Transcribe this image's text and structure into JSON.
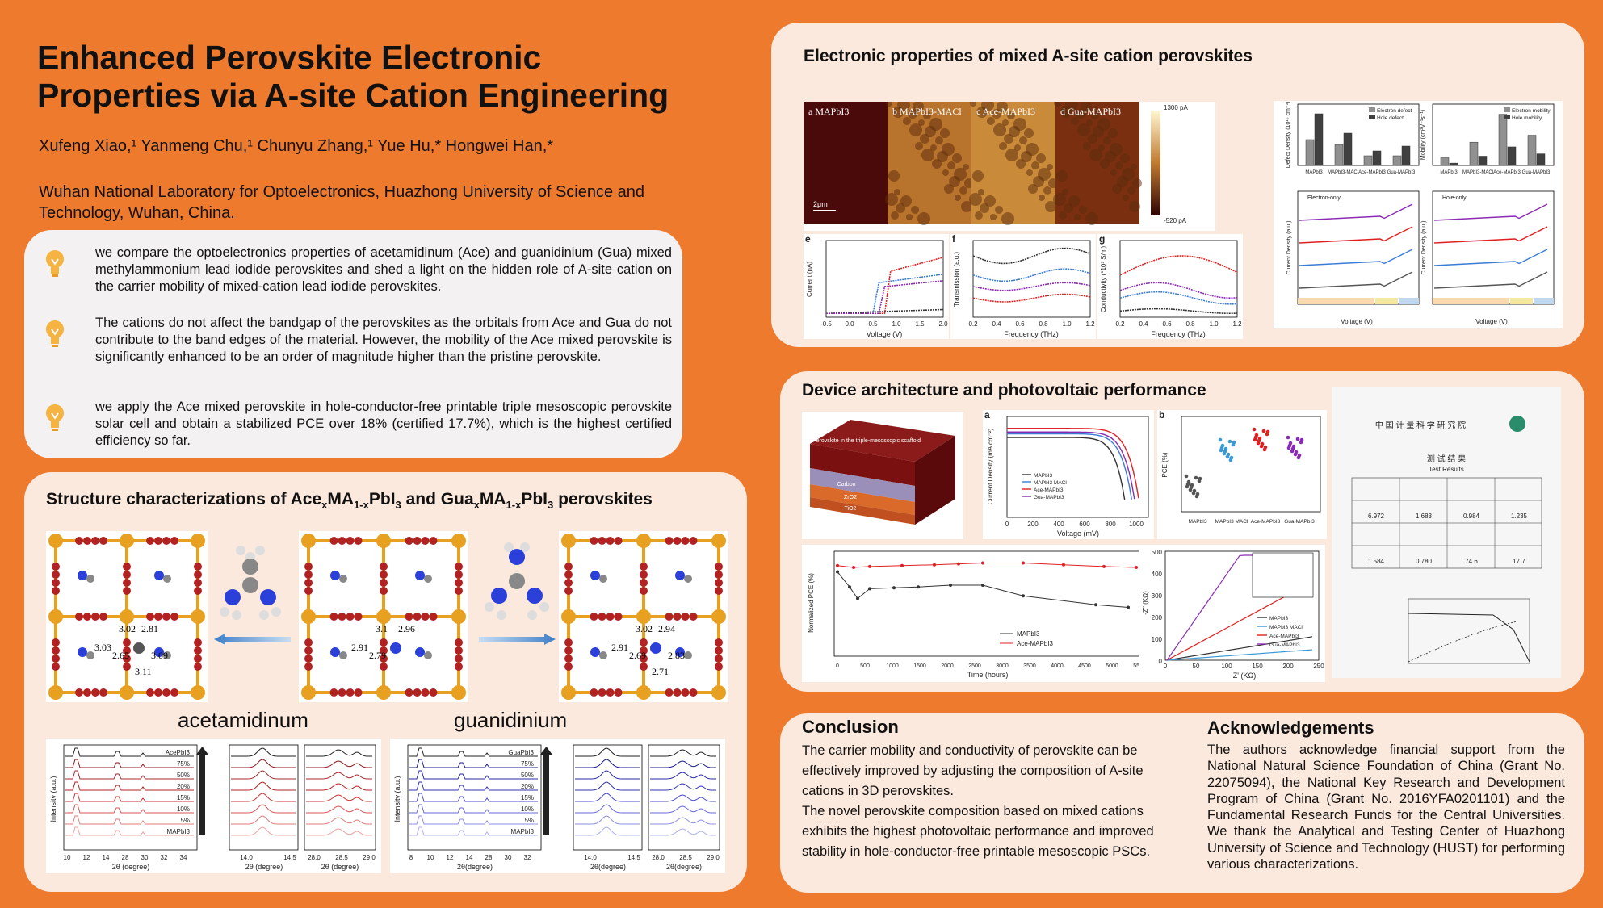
{
  "poster": {
    "title_line1": "Enhanced Perovskite Electronic",
    "title_line2": "Properties via A-site Cation Engineering",
    "authors": "Xufeng Xiao,¹ Yanmeng Chu,¹ Chunyu Zhang,¹ Yue Hu,* Hongwei Han,*",
    "affiliation": "Wuhan National Laboratory for Optoelectronics, Huazhong University of Science and Technology, Wuhan, China."
  },
  "intro": {
    "bullets": [
      "we compare the optoelectronics properties of acetamidinum (Ace) and guanidinium (Gua) mixed methylammonium lead iodide perovskites and shed a light on the hidden role of A-site cation on the carrier mobility of mixed-cation lead iodide perovskites.",
      "The cations do not affect the bandgap of the perovskites as the orbitals from Ace and Gua do not contribute to the band edges of the material. However, the mobility of the Ace mixed perovskite is significantly enhanced to be an order of magnitude higher than the pristine perovskite.",
      "we apply the Ace mixed perovskite in hole-conductor-free printable triple mesoscopic perovskite solar cell and obtain a stabilized PCE over 18% (certified 17.7%), which is the highest certified efficiency so far."
    ]
  },
  "structure": {
    "title_pre": "Structure characterizations of Ace",
    "title_mid1": "MA",
    "title_mid2": "PbI",
    "title_and": " and Gua",
    "title_end": " perovskites",
    "label_ace": "acetamidinum",
    "label_gua": "guanidinium",
    "ace_distances": [
      "3.02",
      "2.81",
      "3.03",
      "2.65",
      "3.09",
      "3.11"
    ],
    "gua_distances": [
      "3.02",
      "2.94",
      "2.91",
      "2.69",
      "2.83",
      "2.71"
    ],
    "mid_distances": [
      "3.1",
      "2.96",
      "2.91",
      "2.79"
    ],
    "xrd_ace_labels": [
      "AcePbI3",
      "75%",
      "50%",
      "20%",
      "15%",
      "10%",
      "5%",
      "MAPbI3"
    ],
    "xrd_gua_labels": [
      "GuaPbI3",
      "75%",
      "50%",
      "20%",
      "15%",
      "10%",
      "5%",
      "MAPbI3"
    ],
    "xrd_ylabel": "Intensity (a.u.)",
    "xrd_xlabel": "2θ (degree)",
    "xrd_xlabel_gua": "2θ(degree)",
    "xrd_ace_ticks": [
      "10",
      "12",
      "14",
      "28",
      "30",
      "32",
      "34"
    ],
    "xrd_gua_ticks": [
      "8",
      "10",
      "12",
      "14",
      "28",
      "30",
      "32"
    ],
    "xrd_zoom1_ticks": [
      "14.0",
      "14.5"
    ],
    "xrd_zoom2_ticks": [
      "28.0",
      "28.5",
      "29.0"
    ]
  },
  "electronic": {
    "title": "Electronic properties of mixed A-site cation perovskites",
    "afm_labels": [
      "a  MAPbI3",
      "b  MAPbI3-MACl",
      "c  Ace-MAPbI3",
      "d  Gua-MAPbI3"
    ],
    "afm_scale": "2μm",
    "afm_max": "1300 pA",
    "afm_min": "-520 pA",
    "plot_e": {
      "label": "e",
      "xlabel": "Voltage (V)",
      "ylabel": "Current (nA)"
    },
    "plot_f": {
      "label": "f",
      "xlabel": "Frequency (THz)",
      "ylabel": "Transmission (a.u.)"
    },
    "plot_g": {
      "label": "g",
      "xlabel": "Frequency (THz)",
      "ylabel": "Conductivity (*10³ S/m)"
    },
    "bar_legend_defect": [
      "Electron defect",
      "Hole defect"
    ],
    "bar_legend_mobility": [
      "Electron mobility",
      "Hole mobility"
    ],
    "bar_ylabel_defect": "Defect Density (10¹⁵ cm⁻³)",
    "bar_ylabel_mobility": "Mobility (cm²V⁻¹s⁻¹)",
    "bar_categories": [
      "MAPbI3",
      "MAPbI3-MACl",
      "Ace-MAPbI3",
      "Gua-MAPbI3"
    ],
    "sclc_titles": [
      "Electron-only",
      "Hole-only"
    ],
    "sclc_ylabel": "Current Density (a.u.)",
    "sclc_xlabel": "Voltage (V)"
  },
  "device": {
    "title": "Device architecture and photovoltaic performance",
    "stack_labels": [
      "Perovskite in the triple-mesoscopic scaffold",
      "Carbon",
      "ZrO2",
      "TiO2"
    ],
    "jv_ylabel": "Current Density (mA cm⁻²)",
    "jv_xlabel": "Voltage (mV)",
    "legend4": [
      "MAPbI3",
      "MAPbI3 MACl",
      "Ace-MAPbI3",
      "Gua-MAPbI3"
    ],
    "pce_ylabel": "PCE (%)",
    "stab_ylabel": "Normalized PCE (%)",
    "stab_xlabel": "Time (hours)",
    "stab_legend": [
      "MAPbI3",
      "Ace-MAPbI3"
    ],
    "eis_ylabel": "-Z'' (KΩ)",
    "eis_xlabel": "Z' (KΩ)",
    "cert_title_cn": "中 国 计 量 科 学 研 究 院",
    "cert_sub_cn": "测 试 结 果",
    "cert_sub_en": "Test Results",
    "cert_values": [
      "6.972",
      "1.683",
      "0.984",
      "1.235",
      "1.584",
      "0.780",
      "74.6",
      "17.7"
    ]
  },
  "conclusion": {
    "title": "Conclusion",
    "p1": "The carrier mobility and conductivity of perovskite can be effectively improved by adjusting the composition of A-site cations in 3D perovskites.",
    "p2": "The novel perovskite composition based on mixed cations exhibits the highest photovoltaic performance and improved stability in hole-conductor-free printable mesoscopic PSCs."
  },
  "ack": {
    "title": "Acknowledgements",
    "text": "The authors acknowledge financial support from the National Natural Science Foundation of China (Grant No. 22075094), the National Key Research and Development Program of China (Grant No. 2016YFA0201101) and the Fundamental Research Funds for the Central Universities. We thank the Analytical and Testing Center of Huazhong University of Science and Technology (HUST) for performing various characterizations."
  }
}
